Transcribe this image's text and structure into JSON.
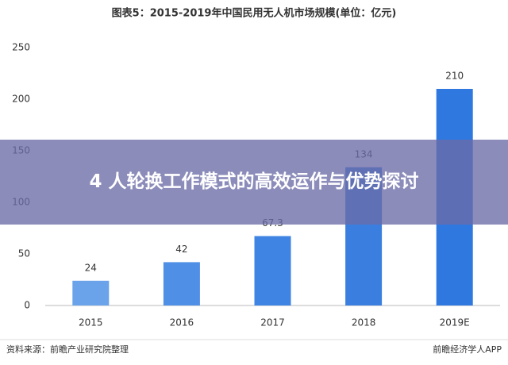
{
  "chart_data": {
    "type": "bar",
    "title": "图表5：2015-2019年中国民用无人机市场规模(单位：亿元)",
    "categories": [
      "2015",
      "2016",
      "2017",
      "2018",
      "2019E"
    ],
    "values": [
      24,
      42,
      67.3,
      134,
      210
    ],
    "colors": [
      "#6aa3ea",
      "#4f8fe6",
      "#3f84e3",
      "#3a7fe0",
      "#2f78e0"
    ],
    "ylim": [
      0,
      250
    ],
    "yticks": [
      0,
      50,
      100,
      150,
      200,
      250
    ],
    "grid": false,
    "source": "资料来源：前瞻产业研究院整理",
    "brand": "前瞻经济学人APP"
  },
  "overlay": {
    "text": "4 人轮换工作模式的高效运作与优势探讨"
  }
}
